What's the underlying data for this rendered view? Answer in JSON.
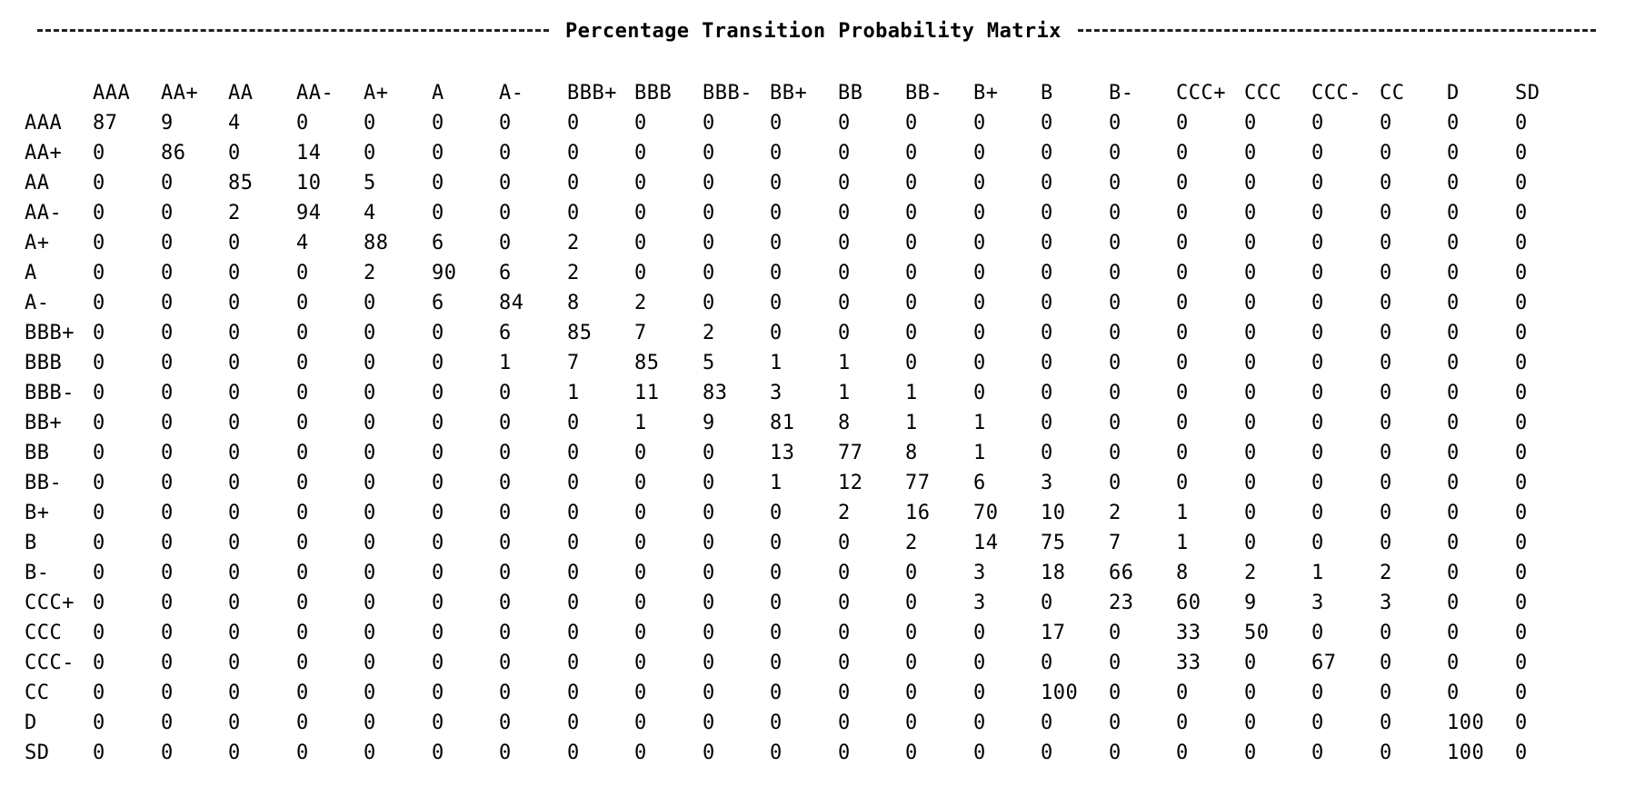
{
  "title": "Percentage Transition Probability Matrix",
  "columns": [
    "AAA",
    "AA+",
    "AA",
    "AA-",
    "A+",
    "A",
    "A-",
    "BBB+",
    "BBB",
    "BBB-",
    "BB+",
    "BB",
    "BB-",
    "B+",
    "B",
    "B-",
    "CCC+",
    "CCC",
    "CCC-",
    "CC",
    "D",
    "SD"
  ],
  "rows": [
    {
      "label": "AAA",
      "values": [
        "87",
        "9",
        "4",
        "0",
        "0",
        "0",
        "0",
        "0",
        "0",
        "0",
        "0",
        "0",
        "0",
        "0",
        "0",
        "0",
        "0",
        "0",
        "0",
        "0",
        "0",
        "0"
      ]
    },
    {
      "label": "AA+",
      "values": [
        "0",
        "86",
        "0",
        "14",
        "0",
        "0",
        "0",
        "0",
        "0",
        "0",
        "0",
        "0",
        "0",
        "0",
        "0",
        "0",
        "0",
        "0",
        "0",
        "0",
        "0",
        "0"
      ]
    },
    {
      "label": "AA",
      "values": [
        "0",
        "0",
        "85",
        "10",
        "5",
        "0",
        "0",
        "0",
        "0",
        "0",
        "0",
        "0",
        "0",
        "0",
        "0",
        "0",
        "0",
        "0",
        "0",
        "0",
        "0",
        "0"
      ]
    },
    {
      "label": "AA-",
      "values": [
        "0",
        "0",
        "2",
        "94",
        "4",
        "0",
        "0",
        "0",
        "0",
        "0",
        "0",
        "0",
        "0",
        "0",
        "0",
        "0",
        "0",
        "0",
        "0",
        "0",
        "0",
        "0"
      ]
    },
    {
      "label": "A+",
      "values": [
        "0",
        "0",
        "0",
        "4",
        "88",
        "6",
        "0",
        "2",
        "0",
        "0",
        "0",
        "0",
        "0",
        "0",
        "0",
        "0",
        "0",
        "0",
        "0",
        "0",
        "0",
        "0"
      ]
    },
    {
      "label": "A",
      "values": [
        "0",
        "0",
        "0",
        "0",
        "2",
        "90",
        "6",
        "2",
        "0",
        "0",
        "0",
        "0",
        "0",
        "0",
        "0",
        "0",
        "0",
        "0",
        "0",
        "0",
        "0",
        "0"
      ]
    },
    {
      "label": "A-",
      "values": [
        "0",
        "0",
        "0",
        "0",
        "0",
        "6",
        "84",
        "8",
        "2",
        "0",
        "0",
        "0",
        "0",
        "0",
        "0",
        "0",
        "0",
        "0",
        "0",
        "0",
        "0",
        "0"
      ]
    },
    {
      "label": "BBB+",
      "values": [
        "0",
        "0",
        "0",
        "0",
        "0",
        "0",
        "6",
        "85",
        "7",
        "2",
        "0",
        "0",
        "0",
        "0",
        "0",
        "0",
        "0",
        "0",
        "0",
        "0",
        "0",
        "0"
      ]
    },
    {
      "label": "BBB",
      "values": [
        "0",
        "0",
        "0",
        "0",
        "0",
        "0",
        "1",
        "7",
        "85",
        "5",
        "1",
        "1",
        "0",
        "0",
        "0",
        "0",
        "0",
        "0",
        "0",
        "0",
        "0",
        "0"
      ]
    },
    {
      "label": "BBB-",
      "values": [
        "0",
        "0",
        "0",
        "0",
        "0",
        "0",
        "0",
        "1",
        "11",
        "83",
        "3",
        "1",
        "1",
        "0",
        "0",
        "0",
        "0",
        "0",
        "0",
        "0",
        "0",
        "0"
      ]
    },
    {
      "label": "BB+",
      "values": [
        "0",
        "0",
        "0",
        "0",
        "0",
        "0",
        "0",
        "0",
        "1",
        "9",
        "81",
        "8",
        "1",
        "1",
        "0",
        "0",
        "0",
        "0",
        "0",
        "0",
        "0",
        "0"
      ]
    },
    {
      "label": "BB",
      "values": [
        "0",
        "0",
        "0",
        "0",
        "0",
        "0",
        "0",
        "0",
        "0",
        "0",
        "13",
        "77",
        "8",
        "1",
        "0",
        "0",
        "0",
        "0",
        "0",
        "0",
        "0",
        "0"
      ]
    },
    {
      "label": "BB-",
      "values": [
        "0",
        "0",
        "0",
        "0",
        "0",
        "0",
        "0",
        "0",
        "0",
        "0",
        "1",
        "12",
        "77",
        "6",
        "3",
        "0",
        "0",
        "0",
        "0",
        "0",
        "0",
        "0"
      ]
    },
    {
      "label": "B+",
      "values": [
        "0",
        "0",
        "0",
        "0",
        "0",
        "0",
        "0",
        "0",
        "0",
        "0",
        "0",
        "2",
        "16",
        "70",
        "10",
        "2",
        "1",
        "0",
        "0",
        "0",
        "0",
        "0"
      ]
    },
    {
      "label": "B",
      "values": [
        "0",
        "0",
        "0",
        "0",
        "0",
        "0",
        "0",
        "0",
        "0",
        "0",
        "0",
        "0",
        "2",
        "14",
        "75",
        "7",
        "1",
        "0",
        "0",
        "0",
        "0",
        "0"
      ]
    },
    {
      "label": "B-",
      "values": [
        "0",
        "0",
        "0",
        "0",
        "0",
        "0",
        "0",
        "0",
        "0",
        "0",
        "0",
        "0",
        "0",
        "3",
        "18",
        "66",
        "8",
        "2",
        "1",
        "2",
        "0",
        "0"
      ]
    },
    {
      "label": "CCC+",
      "values": [
        "0",
        "0",
        "0",
        "0",
        "0",
        "0",
        "0",
        "0",
        "0",
        "0",
        "0",
        "0",
        "0",
        "3",
        "0",
        "23",
        "60",
        "9",
        "3",
        "3",
        "0",
        "0"
      ]
    },
    {
      "label": "CCC",
      "values": [
        "0",
        "0",
        "0",
        "0",
        "0",
        "0",
        "0",
        "0",
        "0",
        "0",
        "0",
        "0",
        "0",
        "0",
        "17",
        "0",
        "33",
        "50",
        "0",
        "0",
        "0",
        "0"
      ]
    },
    {
      "label": "CCC-",
      "values": [
        "0",
        "0",
        "0",
        "0",
        "0",
        "0",
        "0",
        "0",
        "0",
        "0",
        "0",
        "0",
        "0",
        "0",
        "0",
        "0",
        "33",
        "0",
        "67",
        "0",
        "0",
        "0"
      ]
    },
    {
      "label": "CC",
      "values": [
        "0",
        "0",
        "0",
        "0",
        "0",
        "0",
        "0",
        "0",
        "0",
        "0",
        "0",
        "0",
        "0",
        "0",
        "100",
        "0",
        "0",
        "0",
        "0",
        "0",
        "0",
        "0"
      ]
    },
    {
      "label": "D",
      "values": [
        "0",
        "0",
        "0",
        "0",
        "0",
        "0",
        "0",
        "0",
        "0",
        "0",
        "0",
        "0",
        "0",
        "0",
        "0",
        "0",
        "0",
        "0",
        "0",
        "0",
        "100",
        "0"
      ]
    },
    {
      "label": "SD",
      "values": [
        "0",
        "0",
        "0",
        "0",
        "0",
        "0",
        "0",
        "0",
        "0",
        "0",
        "0",
        "0",
        "0",
        "0",
        "0",
        "0",
        "0",
        "0",
        "0",
        "0",
        "100",
        "0"
      ]
    }
  ]
}
